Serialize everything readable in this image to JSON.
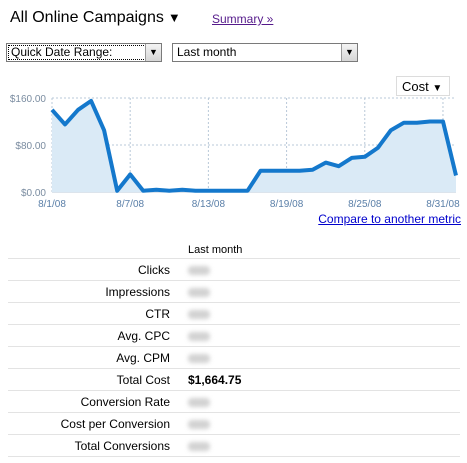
{
  "campaign": {
    "label": "All Online Campaigns",
    "caret": "▼"
  },
  "summary_link": "Summary »",
  "date_range": {
    "quick_label": "Quick Date Range:",
    "period": "Last month",
    "dropdown_arrow": "▼"
  },
  "metric_selector": {
    "label": "Cost",
    "caret": "▼"
  },
  "compare_link": "Compare to another metric",
  "colors": {
    "line": "#1478cc",
    "fill": "#daeaf6",
    "grid": "#b8c8d8",
    "axis_text": "#7a8ca0"
  },
  "chart_data": {
    "type": "area",
    "title": "",
    "xlabel": "",
    "ylabel": "",
    "series": [
      {
        "x": [
          "8/1/08",
          "8/2/08",
          "8/3/08",
          "8/4/08",
          "8/5/08",
          "8/6/08",
          "8/7/08",
          "8/8/08",
          "8/9/08",
          "8/10/08",
          "8/11/08",
          "8/12/08",
          "8/13/08",
          "8/14/08",
          "8/15/08",
          "8/16/08",
          "8/17/08",
          "8/18/08",
          "8/19/08",
          "8/20/08",
          "8/21/08",
          "8/22/08",
          "8/23/08",
          "8/24/08",
          "8/25/08",
          "8/26/08",
          "8/27/08",
          "8/28/08",
          "8/29/08",
          "8/30/08",
          "8/31/08",
          "9/1/08"
        ],
        "values": [
          140,
          115,
          140,
          155,
          105,
          2,
          30,
          2,
          4,
          2,
          4,
          2,
          2,
          2,
          2,
          2,
          36,
          36,
          36,
          36,
          38,
          50,
          44,
          58,
          60,
          75,
          105,
          118,
          118,
          120,
          120,
          28
        ]
      }
    ],
    "x_tick_labels": [
      "8/1/08",
      "8/7/08",
      "8/13/08",
      "8/19/08",
      "8/25/08",
      "8/31/08"
    ],
    "y_tick_labels": [
      "$160.00",
      "$80.00",
      "$0.00"
    ],
    "ylim": [
      0,
      160
    ],
    "grid": true
  },
  "metrics": {
    "column_header": "Last month",
    "rows": [
      {
        "label": "Clicks",
        "value": ""
      },
      {
        "label": "Impressions",
        "value": ""
      },
      {
        "label": "CTR",
        "value": ""
      },
      {
        "label": "Avg. CPC",
        "value": ""
      },
      {
        "label": "Avg. CPM",
        "value": ""
      },
      {
        "label": "Total Cost",
        "value": "$1,664.75"
      },
      {
        "label": "Conversion Rate",
        "value": ""
      },
      {
        "label": "Cost per Conversion",
        "value": ""
      },
      {
        "label": "Total Conversions",
        "value": ""
      }
    ]
  }
}
